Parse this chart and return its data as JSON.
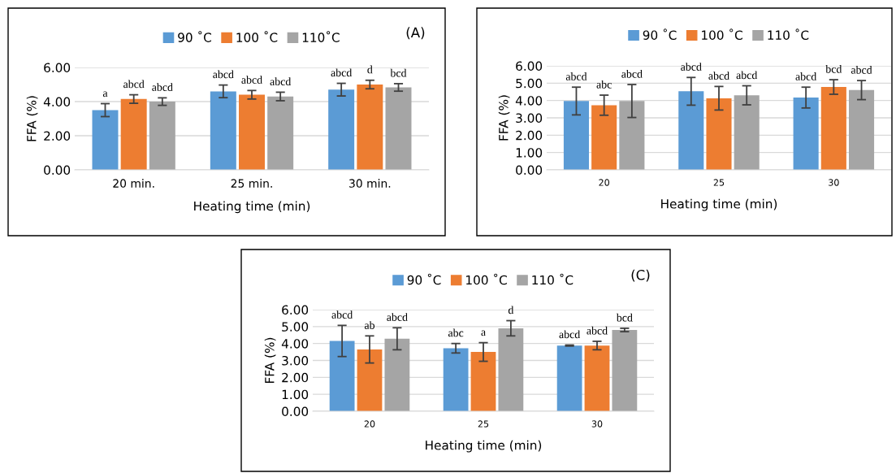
{
  "chart_data": [
    {
      "type": "bar",
      "categories": [
        "20 min.",
        "25 min.",
        "30 min."
      ],
      "xlabel": "Heating time (min)",
      "ylabel": "FFA (%)",
      "ylim": [
        0,
        6
      ],
      "yticks": [
        {
          "value": 0,
          "label": "0.00"
        },
        {
          "value": 2,
          "label": "2.00"
        },
        {
          "value": 4,
          "label": "4.00"
        },
        {
          "value": 6,
          "label": "6.00"
        }
      ],
      "grid": "y",
      "legend": "top",
      "annotations": [
        "(A)"
      ],
      "series": [
        {
          "name": "90 ˚C",
          "color": "#5b9bd5",
          "values": [
            3.5,
            4.6,
            4.7
          ],
          "errors": [
            0.38,
            0.37,
            0.37
          ],
          "value_labels": [
            "a",
            "abcd",
            "abcd"
          ]
        },
        {
          "name": "100 ˚C",
          "color": "#ed7d31",
          "values": [
            4.15,
            4.4,
            5.0
          ],
          "errors": [
            0.25,
            0.25,
            0.25
          ],
          "value_labels": [
            "abcd",
            "abcd",
            "d"
          ]
        },
        {
          "name": "110˚C",
          "color": "#a5a5a5",
          "values": [
            4.0,
            4.3,
            4.83
          ],
          "errors": [
            0.22,
            0.25,
            0.22
          ],
          "value_labels": [
            "abcd",
            "abcd",
            "bcd"
          ]
        }
      ]
    },
    {
      "type": "bar",
      "categories": [
        "20",
        "25",
        "30"
      ],
      "xlabel": "Heating time (min)",
      "ylabel": "FFA (%)",
      "ylim": [
        0,
        6
      ],
      "yticks": [
        {
          "value": 0,
          "label": "0.00"
        },
        {
          "value": 1,
          "label": "1.00"
        },
        {
          "value": 2,
          "label": "2.00"
        },
        {
          "value": 3,
          "label": "3.00"
        },
        {
          "value": 4,
          "label": "4.00"
        },
        {
          "value": 5,
          "label": "5.00"
        },
        {
          "value": 6,
          "label": "6.00"
        }
      ],
      "grid": "y",
      "legend": "top",
      "series": [
        {
          "name": "90 ˚C",
          "color": "#5b9bd5",
          "values": [
            3.97,
            4.53,
            4.17
          ],
          "errors": [
            0.8,
            0.8,
            0.6
          ],
          "value_labels": [
            "abcd",
            "abcd",
            "abcd"
          ]
        },
        {
          "name": "100 ˚C",
          "color": "#ed7d31",
          "values": [
            3.73,
            4.13,
            4.78
          ],
          "errors": [
            0.58,
            0.68,
            0.42
          ],
          "value_labels": [
            "abc",
            "abcd",
            "bcd"
          ]
        },
        {
          "name": "110 ˚C",
          "color": "#a5a5a5",
          "values": [
            3.97,
            4.3,
            4.6
          ],
          "errors": [
            0.95,
            0.55,
            0.55
          ],
          "value_labels": [
            "abcd",
            "abcd",
            "abcd"
          ]
        }
      ]
    },
    {
      "type": "bar",
      "categories": [
        "20",
        "25",
        "30"
      ],
      "xlabel": "Heating time (min)",
      "ylabel": "FFA (%)",
      "ylim": [
        0,
        6
      ],
      "yticks": [
        {
          "value": 0,
          "label": "0.00"
        },
        {
          "value": 1,
          "label": "1.00"
        },
        {
          "value": 2,
          "label": "2.00"
        },
        {
          "value": 3,
          "label": "3.00"
        },
        {
          "value": 4,
          "label": "4.00"
        },
        {
          "value": 5,
          "label": "5.00"
        },
        {
          "value": 6,
          "label": "6.00"
        }
      ],
      "grid": "y",
      "legend": "top",
      "annotations": [
        "(C)"
      ],
      "series": [
        {
          "name": "90 ˚C",
          "color": "#5b9bd5",
          "values": [
            4.15,
            3.72,
            3.88
          ],
          "errors": [
            0.92,
            0.28,
            0.03
          ],
          "value_labels": [
            "abcd",
            "abc",
            "abcd"
          ]
        },
        {
          "name": "100 ˚C",
          "color": "#ed7d31",
          "values": [
            3.65,
            3.5,
            3.88
          ],
          "errors": [
            0.8,
            0.55,
            0.25
          ],
          "value_labels": [
            "ab",
            "a",
            "abcd"
          ]
        },
        {
          "name": "110 ˚C",
          "color": "#a5a5a5",
          "values": [
            4.28,
            4.9,
            4.8
          ],
          "errors": [
            0.65,
            0.45,
            0.1
          ],
          "value_labels": [
            "abcd",
            "d",
            "bcd"
          ]
        }
      ]
    }
  ]
}
